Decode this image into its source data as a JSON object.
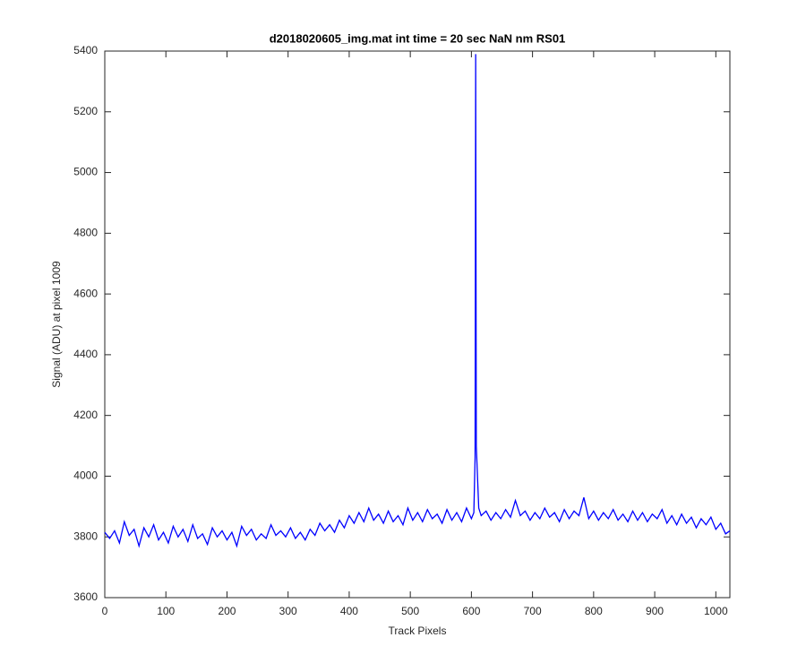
{
  "chart_data": {
    "type": "line",
    "title": "d2018020605_img.mat int time = 20 sec  NaN nm RS01",
    "x_label": "Track Pixels",
    "y_label": "Signal (ADU) at pixel 1009",
    "xlim": [
      0,
      1023
    ],
    "ylim": [
      3600,
      5400
    ],
    "xticks": [
      0,
      100,
      200,
      300,
      400,
      500,
      600,
      700,
      800,
      900,
      1000
    ],
    "yticks": [
      3600,
      3800,
      4000,
      4200,
      4400,
      4600,
      4800,
      5000,
      5200,
      5400
    ],
    "x": [
      0,
      8,
      16,
      24,
      32,
      40,
      48,
      56,
      64,
      72,
      80,
      88,
      96,
      104,
      112,
      120,
      128,
      136,
      144,
      152,
      160,
      168,
      176,
      184,
      192,
      200,
      208,
      216,
      224,
      232,
      240,
      248,
      256,
      264,
      272,
      280,
      288,
      296,
      304,
      312,
      320,
      328,
      336,
      344,
      352,
      360,
      368,
      376,
      384,
      392,
      400,
      408,
      416,
      424,
      432,
      440,
      448,
      456,
      464,
      472,
      480,
      488,
      496,
      504,
      512,
      520,
      528,
      536,
      544,
      552,
      560,
      568,
      576,
      584,
      592,
      600,
      604,
      606,
      607,
      608,
      612,
      616,
      624,
      632,
      640,
      648,
      656,
      664,
      672,
      680,
      688,
      696,
      704,
      712,
      720,
      728,
      736,
      744,
      752,
      760,
      768,
      776,
      784,
      792,
      800,
      808,
      816,
      824,
      832,
      840,
      848,
      856,
      864,
      872,
      880,
      888,
      896,
      904,
      912,
      920,
      928,
      936,
      944,
      952,
      960,
      968,
      976,
      984,
      992,
      1000,
      1008,
      1016,
      1023
    ],
    "series": [
      {
        "color": "#0000ff",
        "values": [
          3815,
          3795,
          3820,
          3780,
          3850,
          3805,
          3825,
          3770,
          3830,
          3800,
          3840,
          3790,
          3815,
          3780,
          3835,
          3800,
          3825,
          3785,
          3840,
          3795,
          3810,
          3775,
          3830,
          3800,
          3820,
          3790,
          3815,
          3770,
          3835,
          3805,
          3825,
          3790,
          3810,
          3795,
          3840,
          3805,
          3820,
          3800,
          3830,
          3795,
          3815,
          3790,
          3825,
          3805,
          3845,
          3820,
          3840,
          3815,
          3855,
          3830,
          3870,
          3845,
          3880,
          3850,
          3895,
          3855,
          3875,
          3845,
          3885,
          3850,
          3870,
          3840,
          3895,
          3855,
          3880,
          3850,
          3890,
          3860,
          3875,
          3845,
          3890,
          3855,
          3880,
          3850,
          3895,
          3860,
          3880,
          4060,
          5390,
          4100,
          3895,
          3870,
          3885,
          3855,
          3880,
          3860,
          3890,
          3865,
          3920,
          3870,
          3885,
          3855,
          3880,
          3860,
          3895,
          3865,
          3880,
          3850,
          3890,
          3860,
          3885,
          3870,
          3930,
          3860,
          3885,
          3855,
          3880,
          3860,
          3890,
          3855,
          3875,
          3850,
          3885,
          3855,
          3880,
          3850,
          3875,
          3860,
          3890,
          3845,
          3870,
          3840,
          3875,
          3845,
          3865,
          3830,
          3860,
          3840,
          3865,
          3825,
          3845,
          3810,
          3820
        ]
      }
    ]
  }
}
